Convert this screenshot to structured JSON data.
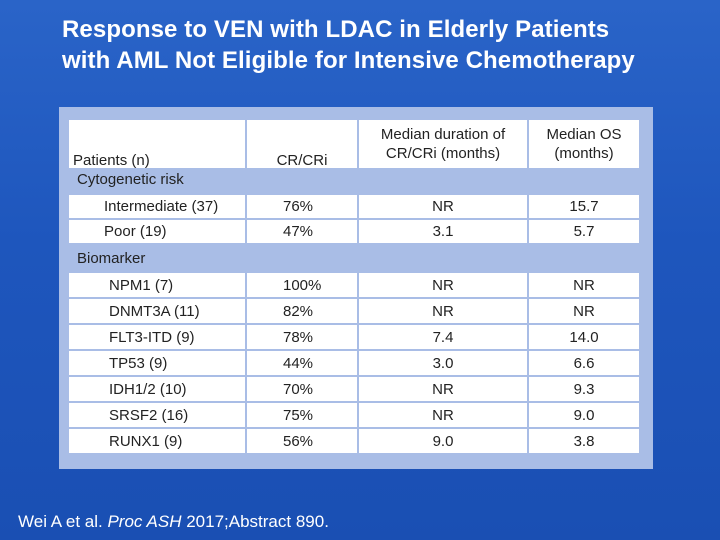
{
  "title": {
    "line1": "Response to VEN with LDAC in Elderly Patients",
    "line2": "with AML Not Eligible for Intensive Chemotherapy"
  },
  "table": {
    "headers": {
      "patients": "Patients (n)",
      "crcri": "CR/CRi",
      "duration_line1": "Median duration of",
      "duration_line2": "CR/CRi (months)",
      "os_line1": "Median OS",
      "os_line2": "(months)"
    },
    "sections": [
      {
        "label": "Cytogenetic risk",
        "rows": [
          {
            "patients": "Intermediate (37)",
            "crcri": "76%",
            "duration": "NR",
            "os": "15.7"
          },
          {
            "patients": "Poor (19)",
            "crcri": "47%",
            "duration": "3.1",
            "os": "5.7"
          }
        ]
      },
      {
        "label": "Biomarker",
        "rows": [
          {
            "patients": "NPM1 (7)",
            "crcri": "100%",
            "duration": "NR",
            "os": "NR"
          },
          {
            "patients": "DNMT3A (11)",
            "crcri": "82%",
            "duration": "NR",
            "os": "NR"
          },
          {
            "patients": "FLT3-ITD (9)",
            "crcri": "78%",
            "duration": "7.4",
            "os": "14.0"
          },
          {
            "patients": "TP53 (9)",
            "crcri": "44%",
            "duration": "3.0",
            "os": "6.6"
          },
          {
            "patients": "IDH1/2 (10)",
            "crcri": "70%",
            "duration": "NR",
            "os": "9.3"
          },
          {
            "patients": "SRSF2 (16)",
            "crcri": "75%",
            "duration": "NR",
            "os": "9.0"
          },
          {
            "patients": "RUNX1 (9)",
            "crcri": "56%",
            "duration": "9.0",
            "os": "3.8"
          }
        ]
      }
    ]
  },
  "footnote": {
    "authors": "Wei A et al. ",
    "journal": "Proc ASH",
    "details": " 2017;Abstract 890."
  }
}
